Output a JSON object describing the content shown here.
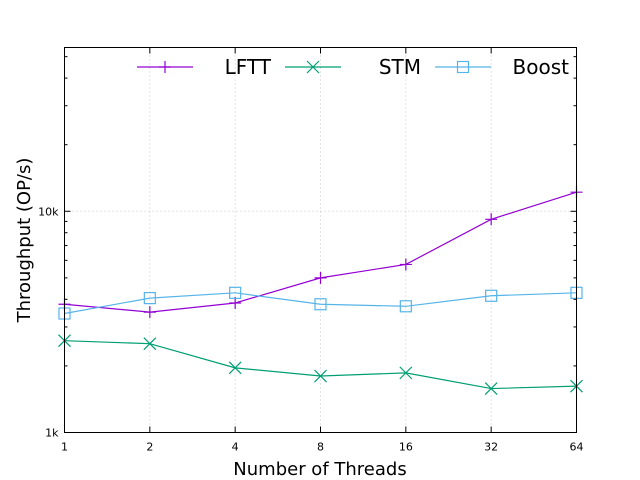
{
  "chart_data": {
    "type": "line",
    "title": "",
    "xlabel": "Number of Threads",
    "ylabel": "Throughput (OP/s)",
    "x_scale": "log2",
    "y_scale": "log10",
    "x": [
      1,
      2,
      4,
      8,
      16,
      32,
      64
    ],
    "x_tick_labels": [
      "1",
      "2",
      "4",
      "8",
      "16",
      "32",
      "64"
    ],
    "y_ticks": [
      {
        "value": 1000,
        "label": "1k"
      },
      {
        "value": 10000,
        "label": "10k"
      }
    ],
    "ylim": [
      1000,
      55000
    ],
    "grid": true,
    "legend_position": "top-right",
    "series": [
      {
        "name": "LFTT",
        "color": "#9400d3",
        "marker": "plus",
        "values": [
          3800,
          3500,
          3850,
          5000,
          5750,
          9200,
          12200
        ]
      },
      {
        "name": "STM",
        "color": "#009e73",
        "marker": "cross",
        "values": [
          2600,
          2520,
          1960,
          1800,
          1860,
          1580,
          1620
        ]
      },
      {
        "name": "Boost",
        "color": "#56b4e9",
        "marker": "square",
        "values": [
          3450,
          4050,
          4280,
          3800,
          3720,
          4150,
          4280
        ]
      }
    ]
  }
}
